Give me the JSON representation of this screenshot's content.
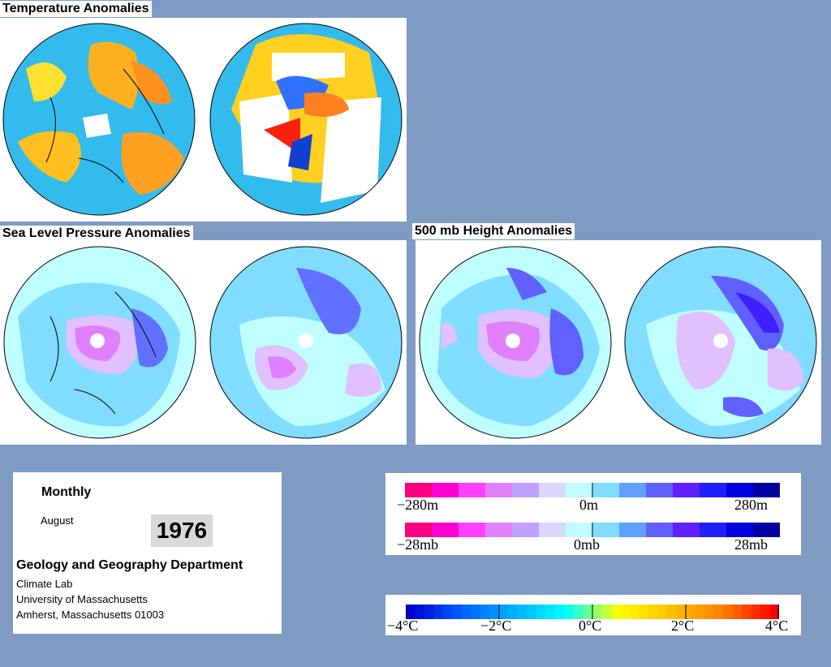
{
  "temperature": {
    "title": "Temperature Anomalies"
  },
  "slp": {
    "title": "Sea Level Pressure Anomalies"
  },
  "height500": {
    "title": "500 mb Height Anomalies"
  },
  "info": {
    "period": "Monthly",
    "month": "August",
    "year": "1976",
    "dept": "Geology and Geography Department",
    "lab": "Climate Lab",
    "univ": "University of Massachusetts",
    "addr": "Amherst, Massachusetts 01003"
  },
  "legend_height": {
    "left": "−280m",
    "mid": "0m",
    "right": "280m"
  },
  "legend_pressure": {
    "left": "−28mb",
    "mid": "0mb",
    "right": "28mb"
  },
  "legend_temp": {
    "t1": "−4°C",
    "t2": "−2°C",
    "t3": "0°C",
    "t4": "2°C",
    "t5": "4°C"
  },
  "colors": {
    "background": "#7f9bc4",
    "anomaly_scale": [
      "#ff0080",
      "#ff00d0",
      "#ff40ff",
      "#e080ff",
      "#c0a0ff",
      "#d8d8ff",
      "#c0ffff",
      "#80ddff",
      "#60a0ff",
      "#6060ff",
      "#6020ff",
      "#2020ff",
      "#0000e0",
      "#0000a0"
    ],
    "temperature_scale": [
      "#0000d0",
      "#0060ff",
      "#00b0ff",
      "#00ffff",
      "#ffff00",
      "#ffc000",
      "#ff8000",
      "#ff0000"
    ]
  }
}
